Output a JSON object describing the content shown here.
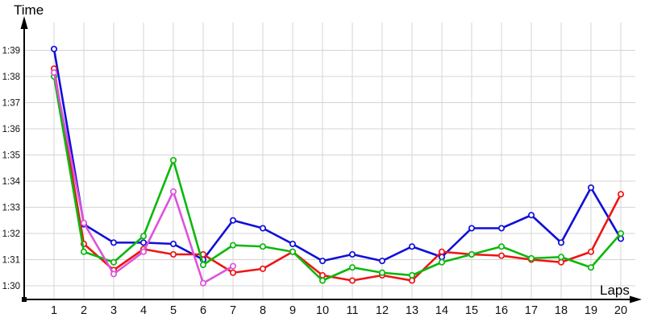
{
  "chart": {
    "y_axis_title": "Time",
    "x_axis_title": "Laps",
    "background_color": "#ffffff",
    "gridline_color": "#d4d4d4",
    "axis_color": "#000000",
    "label_color": "#111111"
  },
  "chart_data": {
    "type": "line",
    "title": "",
    "xlabel": "Laps",
    "ylabel": "Time",
    "grid": true,
    "legend": "none",
    "x": [
      1,
      2,
      3,
      4,
      5,
      6,
      7,
      8,
      9,
      10,
      11,
      12,
      13,
      14,
      15,
      16,
      17,
      18,
      19,
      20
    ],
    "x_tick_labels": [
      "1",
      "2",
      "3",
      "4",
      "5",
      "6",
      "7",
      "8",
      "9",
      "10",
      "11",
      "12",
      "13",
      "14",
      "15",
      "16",
      "17",
      "18",
      "19",
      "20"
    ],
    "y_axis": {
      "ticks": [
        "1:30",
        "1:31",
        "1:32",
        "1:33",
        "1:34",
        "1:35",
        "1:36",
        "1:37",
        "1:38",
        "1:39"
      ],
      "unit": "minutes:seconds",
      "min_seconds": 90,
      "max_seconds": 99
    },
    "series": [
      {
        "name": "blue",
        "color": "#0f0fd8",
        "values_seconds": [
          99.05,
          92.35,
          91.65,
          91.65,
          91.6,
          91.0,
          92.5,
          92.2,
          91.6,
          90.95,
          91.2,
          90.95,
          91.5,
          91.1,
          92.2,
          92.2,
          92.7,
          91.65,
          93.75,
          91.8
        ]
      },
      {
        "name": "red",
        "color": "#ed1515",
        "values_seconds": [
          98.3,
          91.6,
          90.6,
          91.4,
          91.2,
          91.2,
          90.5,
          90.65,
          91.3,
          90.4,
          90.2,
          90.4,
          90.2,
          91.3,
          91.2,
          91.15,
          91.0,
          90.9,
          91.3,
          93.5
        ]
      },
      {
        "name": "green",
        "color": "#0cb80c",
        "values_seconds": [
          98.0,
          91.3,
          90.9,
          91.9,
          94.8,
          90.8,
          91.55,
          91.5,
          91.3,
          90.2,
          90.7,
          90.5,
          90.4,
          90.9,
          91.2,
          91.5,
          91.05,
          91.1,
          90.7,
          92.0
        ]
      },
      {
        "name": "magenta",
        "color": "#de52de",
        "values_seconds": [
          98.15,
          92.4,
          90.45,
          91.3,
          93.6,
          90.1,
          90.75
        ]
      }
    ]
  }
}
